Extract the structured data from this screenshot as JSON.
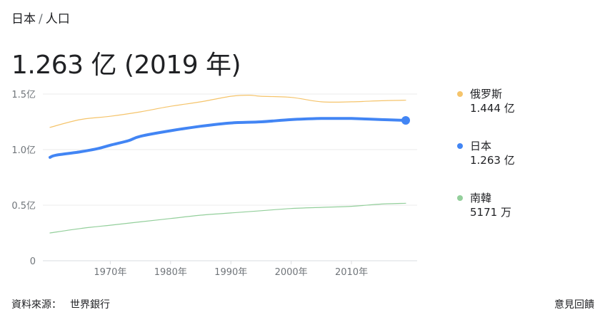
{
  "breadcrumb": {
    "country": "日本",
    "separator": "/",
    "topic": "人口"
  },
  "headline": "1.263 亿 (2019 年)",
  "legend": [
    {
      "name": "俄罗斯",
      "value": "1.444 亿",
      "color": "#f5c46b"
    },
    {
      "name": "日本",
      "value": "1.263 亿",
      "color": "#4285f4"
    },
    {
      "name": "南韓",
      "value": "5171 万",
      "color": "#93cf9b"
    }
  ],
  "footer": {
    "source_label": "資料來源：",
    "source_name": "世界銀行",
    "feedback": "意見回饋"
  },
  "chart_data": {
    "type": "line",
    "x_unit": "year",
    "xlim": [
      1960,
      2019
    ],
    "ylim": [
      0,
      1.5
    ],
    "yticks": [
      0,
      0.5,
      1.0,
      1.5
    ],
    "ytick_labels": [
      "0",
      "0.5亿",
      "1.0亿",
      "1.5亿"
    ],
    "xticks": [
      1970,
      1980,
      1990,
      2000,
      2010
    ],
    "xtick_labels": [
      "1970年",
      "1980年",
      "1990年",
      "2000年",
      "2010年"
    ],
    "grid": true,
    "series": [
      {
        "name": "俄罗斯",
        "color": "#f5c46b",
        "width": 1.2,
        "x": [
          1960,
          1965,
          1970,
          1975,
          1980,
          1985,
          1990,
          1993,
          1995,
          2000,
          2005,
          2010,
          2015,
          2019
        ],
        "y": [
          1.2,
          1.27,
          1.3,
          1.34,
          1.39,
          1.43,
          1.48,
          1.49,
          1.48,
          1.47,
          1.43,
          1.43,
          1.44,
          1.444
        ]
      },
      {
        "name": "日本",
        "color": "#4285f4",
        "width": 4,
        "x": [
          1960,
          1961,
          1965,
          1968,
          1970,
          1973,
          1975,
          1980,
          1985,
          1990,
          1995,
          2000,
          2005,
          2008,
          2010,
          2015,
          2019
        ],
        "y": [
          0.93,
          0.95,
          0.98,
          1.01,
          1.04,
          1.08,
          1.12,
          1.17,
          1.21,
          1.24,
          1.25,
          1.27,
          1.28,
          1.28,
          1.28,
          1.27,
          1.263
        ],
        "endpoint": true
      },
      {
        "name": "南韓",
        "color": "#93cf9b",
        "width": 1.2,
        "x": [
          1960,
          1965,
          1970,
          1975,
          1980,
          1985,
          1990,
          1995,
          2000,
          2005,
          2010,
          2015,
          2019
        ],
        "y": [
          0.25,
          0.29,
          0.32,
          0.35,
          0.38,
          0.41,
          0.43,
          0.45,
          0.47,
          0.48,
          0.49,
          0.51,
          0.517
        ]
      }
    ]
  }
}
